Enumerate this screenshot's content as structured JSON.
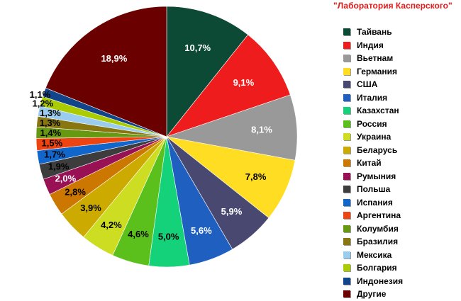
{
  "chart_data": {
    "type": "pie",
    "title": "\"Лаборатория Касперского\"",
    "title_color": "#e31b1b",
    "legend_position": "right",
    "categories": [
      "Тайвань",
      "Индия",
      "Вьетнам",
      "Германия",
      "США",
      "Италия",
      "Казахстан",
      "Россия",
      "Украина",
      "Беларусь",
      "Китай",
      "Румыния",
      "Польша",
      "Испания",
      "Аргентина",
      "Колумбия",
      "Бразилия",
      "Мексика",
      "Болгария",
      "Индонезия",
      "Другие"
    ],
    "values": [
      10.7,
      9.1,
      8.1,
      7.8,
      5.9,
      5.6,
      5.0,
      4.6,
      4.2,
      3.9,
      2.8,
      2.0,
      1.9,
      1.7,
      1.5,
      1.4,
      1.3,
      1.3,
      1.2,
      1.1,
      18.9
    ],
    "labels": [
      "10,7%",
      "9,1%",
      "8,1%",
      "7,8%",
      "5,9%",
      "5,6%",
      "5,0%",
      "4,6%",
      "4,2%",
      "3,9%",
      "2,8%",
      "2,0%",
      "1,9%",
      "1,7%",
      "1,5%",
      "1,4%",
      "1,3%",
      "1,3%",
      "1,2%",
      "1,1%",
      "18,9%"
    ],
    "colors": [
      "#0d4a36",
      "#ee1c1c",
      "#999999",
      "#ffdd22",
      "#494870",
      "#1f5fbf",
      "#14d27a",
      "#5cc01c",
      "#ccdd22",
      "#ccaa00",
      "#cc7700",
      "#991155",
      "#3d3d3d",
      "#1166cc",
      "#ee4411",
      "#669911",
      "#887711",
      "#99ccee",
      "#aacc00",
      "#114488",
      "#6a0000"
    ],
    "label_colors": [
      "#ffffff",
      "#ffffff",
      "#ffffff",
      "#000000",
      "#ffffff",
      "#ffffff",
      "#000000",
      "#000000",
      "#000000",
      "#000000",
      "#000000",
      "#ffffff",
      "#000000",
      "#000000",
      "#000000",
      "#000000",
      "#000000",
      "#000000",
      "#000000",
      "#000000",
      "#ffffff"
    ]
  }
}
